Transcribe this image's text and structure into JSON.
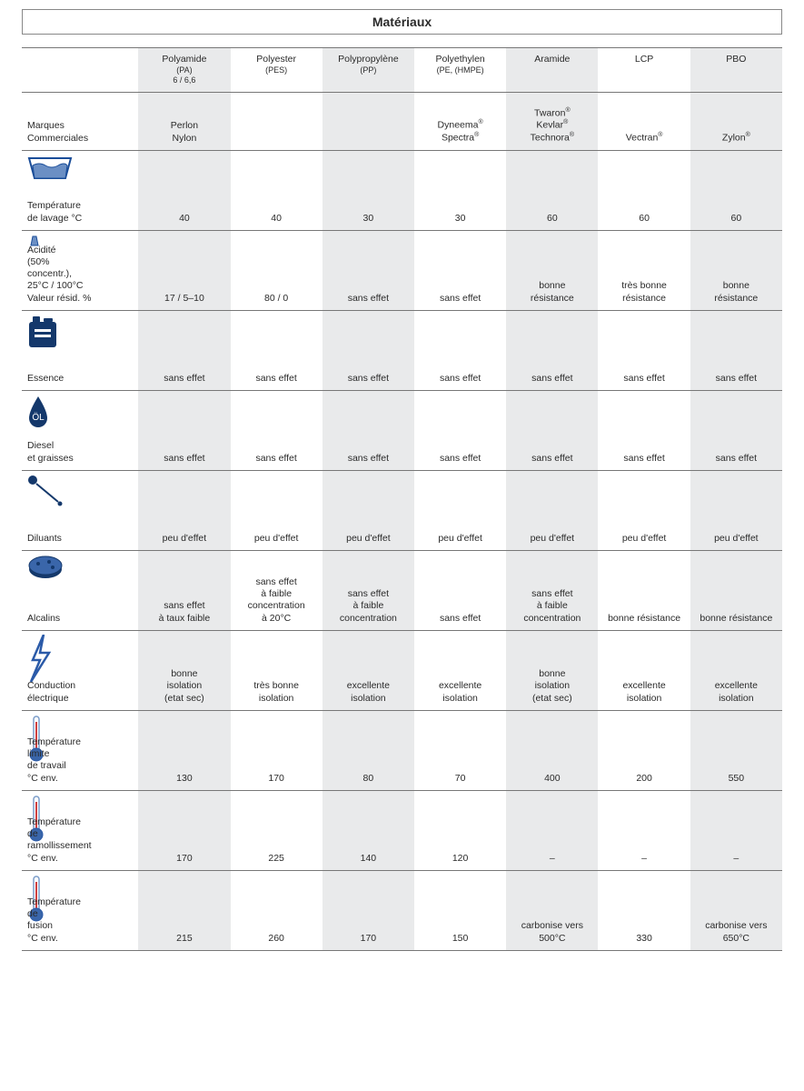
{
  "page_title": "Matériaux",
  "colors": {
    "icon_fill": "#1a4d99",
    "icon_light": "#6b8fc4",
    "shade": "#e9eaeb",
    "border": "#777"
  },
  "columns": [
    {
      "name": "Polyamide",
      "sub": "(PA)\n6 / 6,6"
    },
    {
      "name": "Polyester",
      "sub": "(PES)"
    },
    {
      "name": "Polypropylène",
      "sub": "(PP)"
    },
    {
      "name": "Polyethylen",
      "sub": "(PE, (HMPE)"
    },
    {
      "name": "Aramide",
      "sub": ""
    },
    {
      "name": "LCP",
      "sub": ""
    },
    {
      "name": "PBO",
      "sub": ""
    }
  ],
  "rows": [
    {
      "key": "brands",
      "label": "Marques\nCommerciales",
      "icon": null,
      "cells": [
        "Perlon\nNylon",
        "",
        "",
        "Dyneema®\nSpectra®",
        "Twaron®\nKevlar®\nTechnora®",
        "Vectran®",
        "Zylon®"
      ]
    },
    {
      "key": "wash_temp",
      "label": "Température\nde lavage °C",
      "icon": "wash",
      "cells": [
        "40",
        "40",
        "30",
        "30",
        "60",
        "60",
        "60"
      ]
    },
    {
      "key": "acidity",
      "label": "Acidité\n(50%\nconcentr.),\n25°C / 100°C\nValeur résid. %",
      "icon": "flask",
      "cells": [
        "17 / 5–10",
        "80 / 0",
        "sans effet",
        "sans effet",
        "bonne\nrésistance",
        "très bonne\nrésistance",
        "bonne\nrésistance"
      ]
    },
    {
      "key": "essence",
      "label": "Essence",
      "icon": "fuel",
      "cells": [
        "sans effet",
        "sans effet",
        "sans effet",
        "sans effet",
        "sans effet",
        "sans effet",
        "sans effet"
      ]
    },
    {
      "key": "diesel",
      "label": "Diesel\net graisses",
      "icon": "oil",
      "cells": [
        "sans effet",
        "sans effet",
        "sans effet",
        "sans effet",
        "sans effet",
        "sans effet",
        "sans effet"
      ]
    },
    {
      "key": "diluants",
      "label": "Diluants",
      "icon": "dropper",
      "cells": [
        "peu d'effet",
        "peu d'effet",
        "peu d'effet",
        "peu d'effet",
        "peu d'effet",
        "peu d'effet",
        "peu d'effet"
      ]
    },
    {
      "key": "alcalins",
      "label": "Alcalins",
      "icon": "sponge",
      "cells": [
        "sans effet\nà taux faible",
        "sans effet\nà faible\nconcentration\nà 20°C",
        "sans effet\nà faible\nconcentration",
        "sans effet",
        "sans effet\nà faible\nconcentration",
        "bonne résistance",
        "bonne résistance"
      ]
    },
    {
      "key": "conduction",
      "label": "Conduction\nélectrique",
      "icon": "bolt",
      "cells": [
        "bonne\nisolation\n(etat sec)",
        "très bonne\nisolation",
        "excellente\nisolation",
        "excellente\nisolation",
        "bonne\nisolation\n(etat sec)",
        "excellente\nisolation",
        "excellente\nisolation"
      ]
    },
    {
      "key": "temp_limit",
      "label": "Température\nlimite\nde travail\n°C env.",
      "icon": "thermo",
      "cells": [
        "130",
        "170",
        "80",
        "70",
        "400",
        "200",
        "550"
      ]
    },
    {
      "key": "temp_soft",
      "label": "Température\nde\nramollissement\n°C env.",
      "icon": "thermo",
      "cells": [
        "170",
        "225",
        "140",
        "120",
        "–",
        "–",
        "–"
      ]
    },
    {
      "key": "temp_fusion",
      "label": "Température\nde\nfusion\n°C env.",
      "icon": "thermo",
      "cells": [
        "215",
        "260",
        "170",
        "150",
        "carbonise vers\n500°C",
        "330",
        "carbonise vers\n650°C"
      ]
    }
  ]
}
